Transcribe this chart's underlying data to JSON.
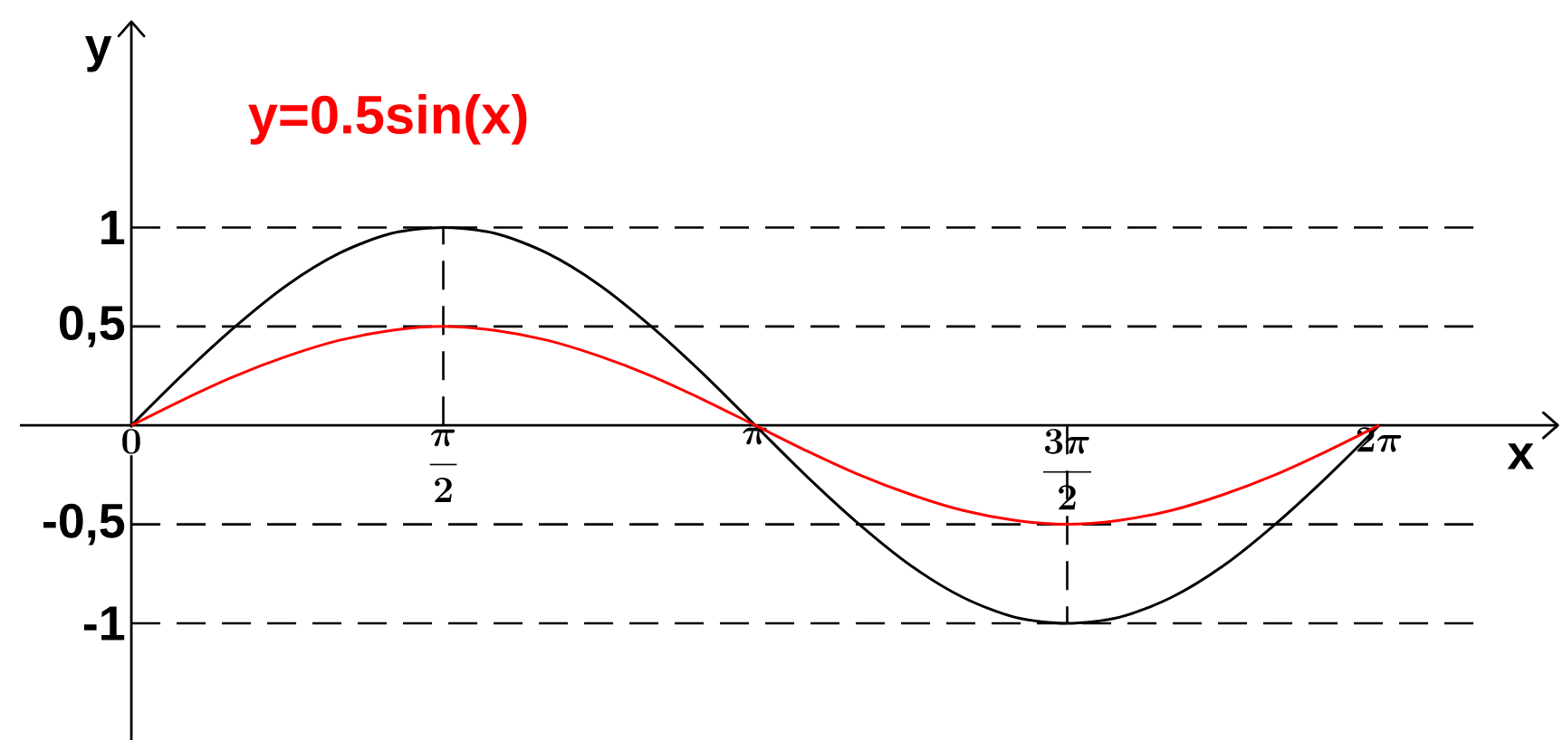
{
  "chart_data": {
    "type": "line",
    "xlabel": "x",
    "ylabel": "y",
    "categories": [
      "0",
      null,
      null,
      null,
      null,
      null,
      "\\frac{\\pi}{2}",
      null,
      null,
      null,
      null,
      null,
      "\\pi",
      null,
      null,
      null,
      null,
      null,
      "\\frac{3\\pi}{2}",
      null,
      null,
      null,
      null,
      null,
      "2\\pi"
    ],
    "series": [
      {
        "color": "#000000",
        "values": [
          0,
          0.26,
          0.5,
          0.71,
          0.87,
          0.97,
          1,
          0.97,
          0.87,
          0.71,
          0.5,
          0.26,
          0,
          -0.26,
          -0.5,
          -0.71,
          -0.87,
          -0.97,
          -1,
          -0.97,
          -0.87,
          -0.71,
          -0.5,
          -0.26,
          0
        ]
      },
      {
        "name": "y=0.5sin(x)",
        "color": "#ff0000",
        "values": [
          0,
          0.13,
          0.25,
          0.35,
          0.43,
          0.48,
          0.5,
          0.48,
          0.43,
          0.35,
          0.25,
          0.13,
          0,
          -0.13,
          -0.25,
          -0.35,
          -0.43,
          -0.48,
          -0.5,
          -0.48,
          -0.43,
          -0.35,
          -0.25,
          -0.13,
          0
        ]
      }
    ],
    "ylim": [
      -1.59,
      2.04
    ],
    "yticks": [
      1,
      {
        "value": 0.5,
        "label": "0,5"
      },
      {
        "value": -0.5,
        "label": "-0,5"
      },
      -1
    ],
    "ref_lines": [
      {
        "axis": "y",
        "value": 1,
        "color": "#000000",
        "line_style": "dashed"
      },
      {
        "axis": "y",
        "value": 0.5,
        "color": "#000000",
        "line_style": "dashed"
      },
      {
        "axis": "y",
        "value": -0.5,
        "color": "#000000",
        "line_style": "dashed"
      },
      {
        "axis": "y",
        "value": -1,
        "color": "#000000",
        "line_style": "dashed"
      },
      {
        "axis": "x",
        "value": "\\frac{\\pi}{2}",
        "color": "#000000",
        "line_style": "dashed"
      },
      {
        "axis": "x",
        "value": "\\frac{3\\pi}{2}",
        "color": "#000000",
        "line_style": "dashed"
      }
    ]
  }
}
